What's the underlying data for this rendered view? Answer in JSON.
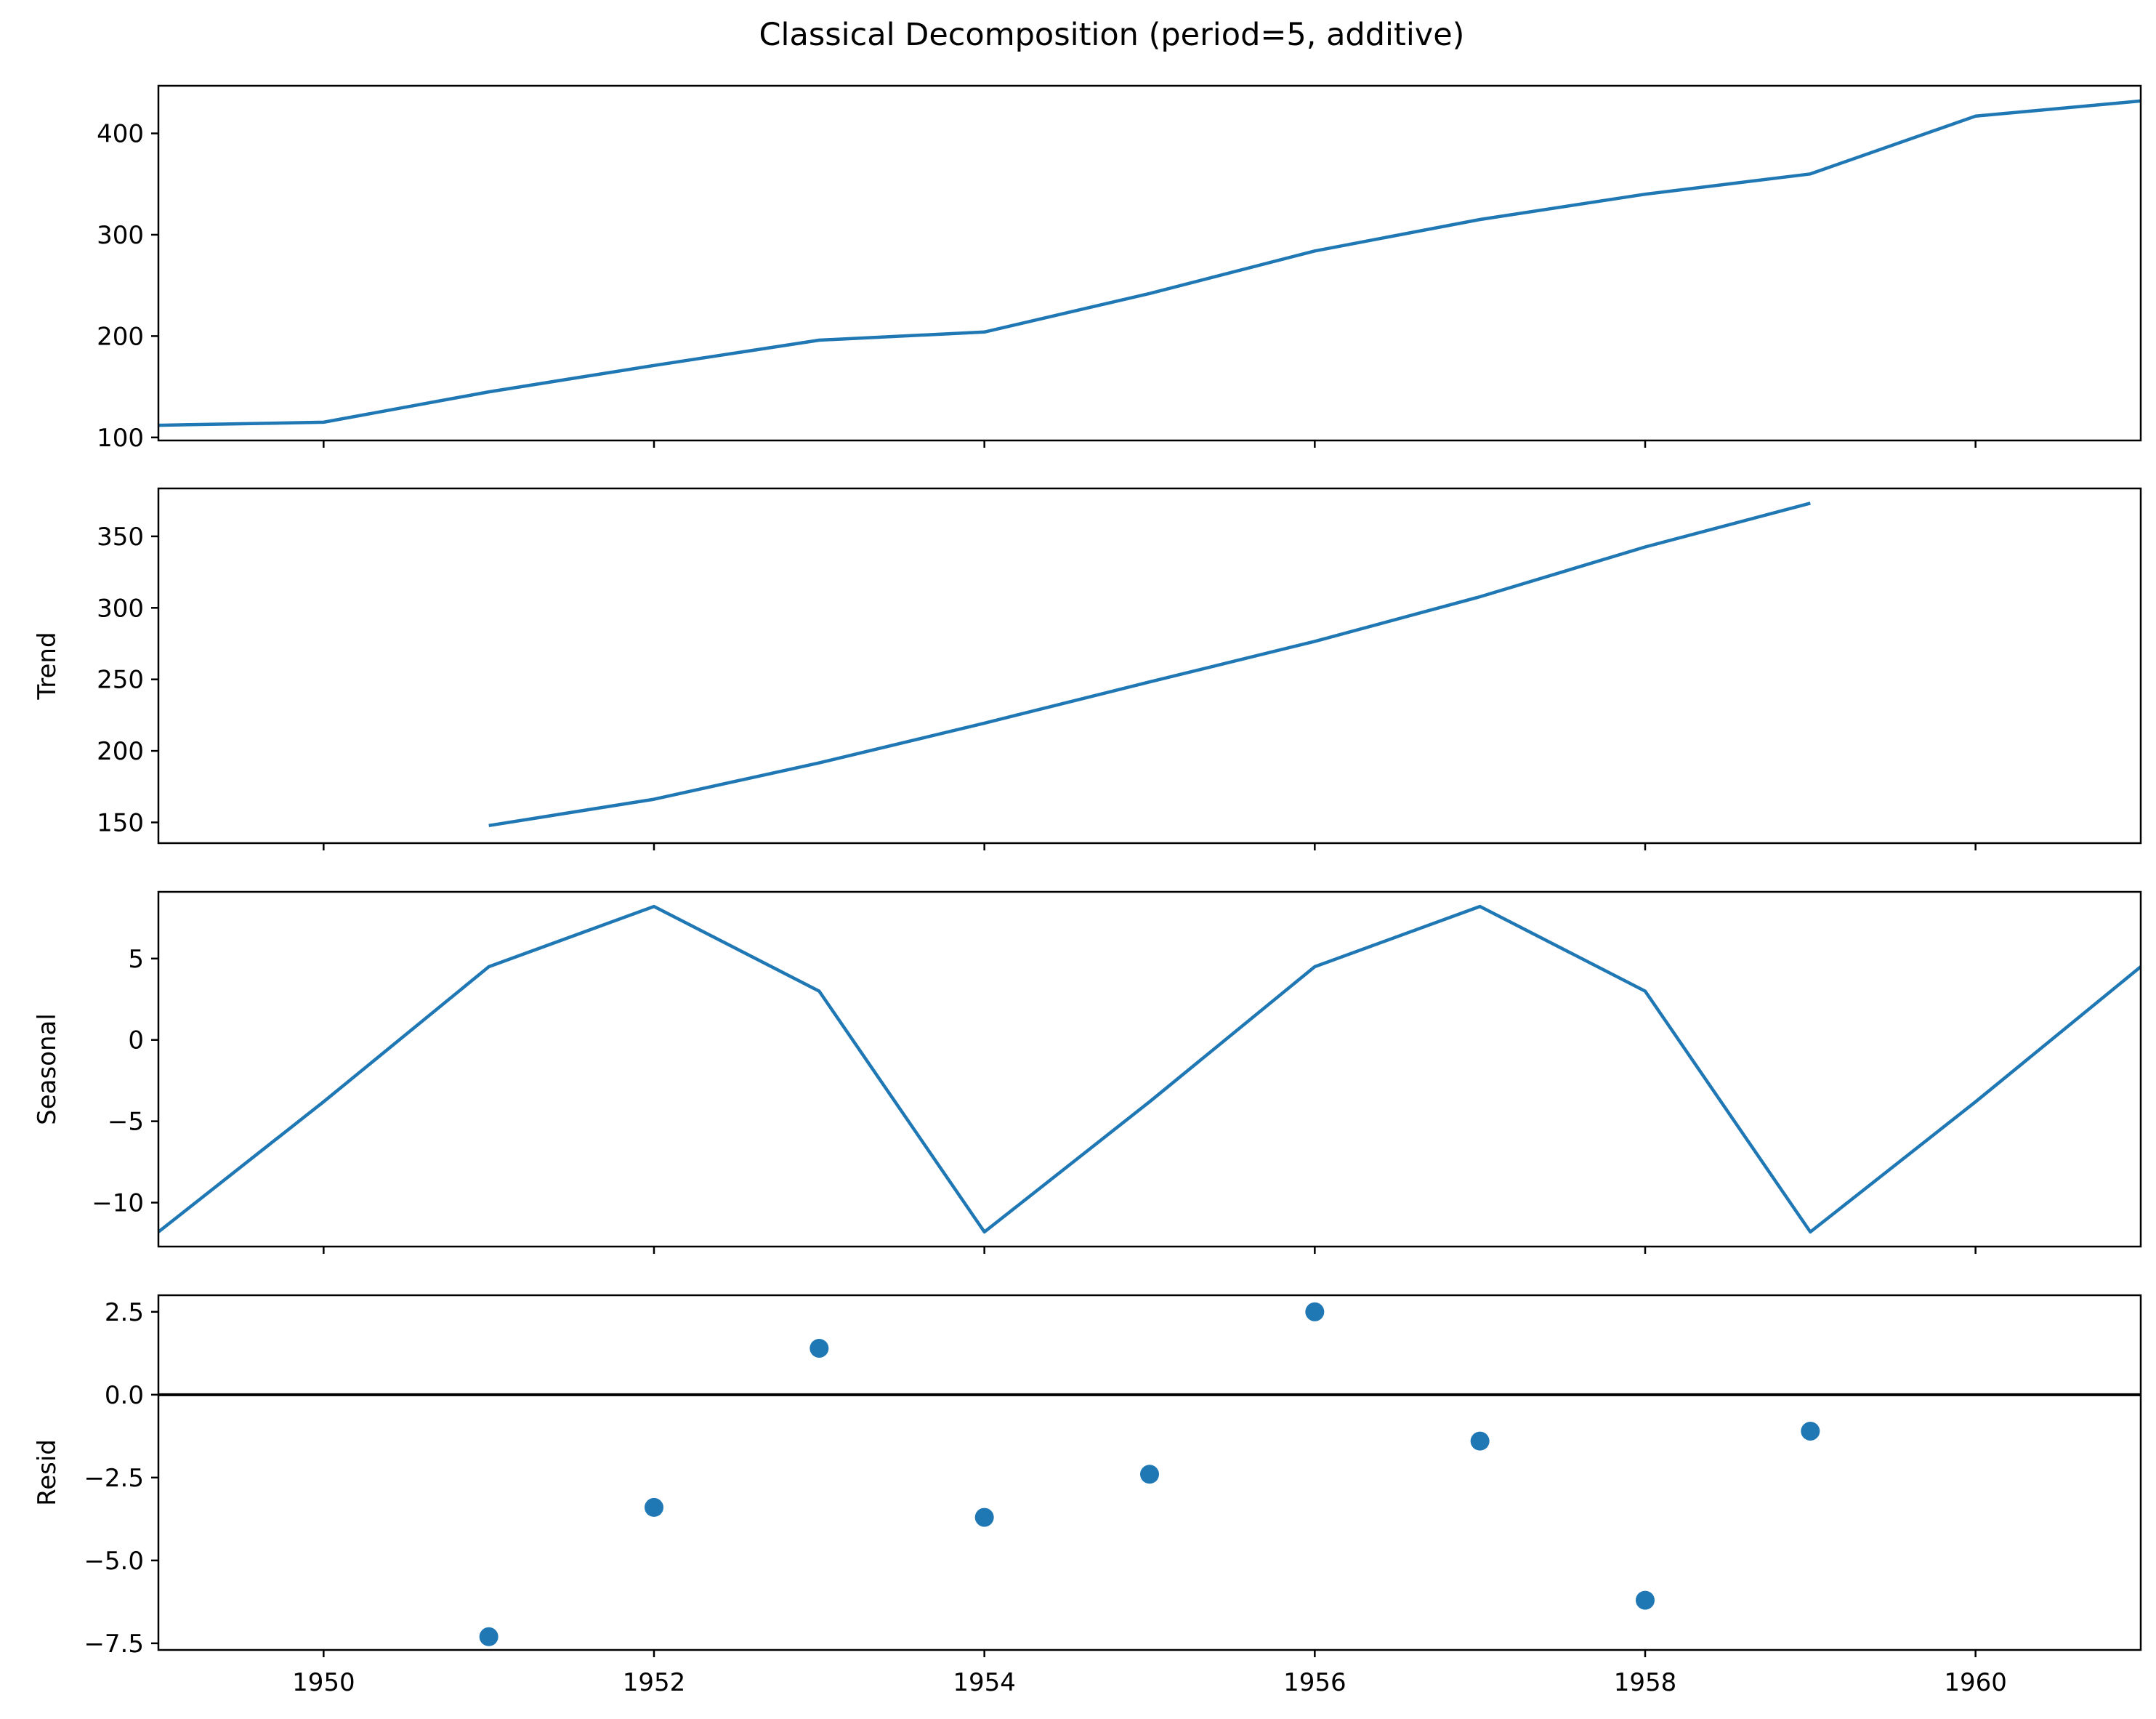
{
  "chart_data": {
    "type": "line",
    "title": "Classical Decomposition (period=5, additive)",
    "xlim": [
      1949,
      1961
    ],
    "x_ticks": [
      1950,
      1952,
      1954,
      1956,
      1958,
      1960
    ],
    "x_tick_labels": [
      "1950",
      "1952",
      "1954",
      "1956",
      "1958",
      "1960"
    ],
    "color": "#1f77b4",
    "panels": [
      {
        "key": "observed",
        "type": "line",
        "ylabel": "",
        "ylim": [
          97,
          447
        ],
        "y_ticks": [
          100,
          200,
          300,
          400
        ],
        "y_tick_labels": [
          "100",
          "200",
          "300",
          "400"
        ],
        "x": [
          1949,
          1950,
          1951,
          1952,
          1953,
          1954,
          1955,
          1956,
          1957,
          1958,
          1959,
          1960,
          1961
        ],
        "values": [
          112,
          115,
          145,
          171,
          196,
          204,
          242,
          284,
          315,
          340,
          360,
          417,
          432
        ]
      },
      {
        "key": "trend",
        "type": "line",
        "ylabel": "Trend",
        "ylim": [
          135.5,
          383.5
        ],
        "y_ticks": [
          150,
          200,
          250,
          300,
          350
        ],
        "y_tick_labels": [
          "150",
          "200",
          "250",
          "300",
          "350"
        ],
        "x": [
          1951,
          1952,
          1953,
          1954,
          1955,
          1956,
          1957,
          1958,
          1959
        ],
        "values": [
          147.8,
          166.2,
          191.6,
          219.4,
          248.2,
          276.6,
          307.8,
          342.6,
          373.2
        ]
      },
      {
        "key": "seasonal",
        "type": "line",
        "ylabel": "Seasonal",
        "ylim": [
          -12.7,
          9.1
        ],
        "y_ticks": [
          -10,
          -5,
          0,
          5
        ],
        "y_tick_labels": [
          "−10",
          "−5",
          "0",
          "5"
        ],
        "x": [
          1949,
          1950,
          1951,
          1952,
          1953,
          1954,
          1955,
          1956,
          1957,
          1958,
          1959,
          1960,
          1961
        ],
        "values": [
          -11.8,
          -3.8,
          4.5,
          8.2,
          3.0,
          -11.8,
          -3.8,
          4.5,
          8.2,
          3.0,
          -11.8,
          -3.8,
          4.5
        ]
      },
      {
        "key": "resid",
        "type": "scatter",
        "ylabel": "Resid",
        "ylim": [
          -7.7,
          3.0
        ],
        "y_ticks": [
          2.5,
          0.0,
          -2.5,
          -5.0,
          -7.5
        ],
        "y_tick_labels": [
          "2.5",
          "0.0",
          "−2.5",
          "−5.0",
          "−7.5"
        ],
        "hline": 0,
        "x": [
          1951,
          1952,
          1953,
          1954,
          1955,
          1956,
          1957,
          1958,
          1959
        ],
        "values": [
          -7.3,
          -3.4,
          1.4,
          -3.7,
          -2.4,
          2.5,
          -1.4,
          -6.2,
          -1.1
        ]
      }
    ]
  }
}
